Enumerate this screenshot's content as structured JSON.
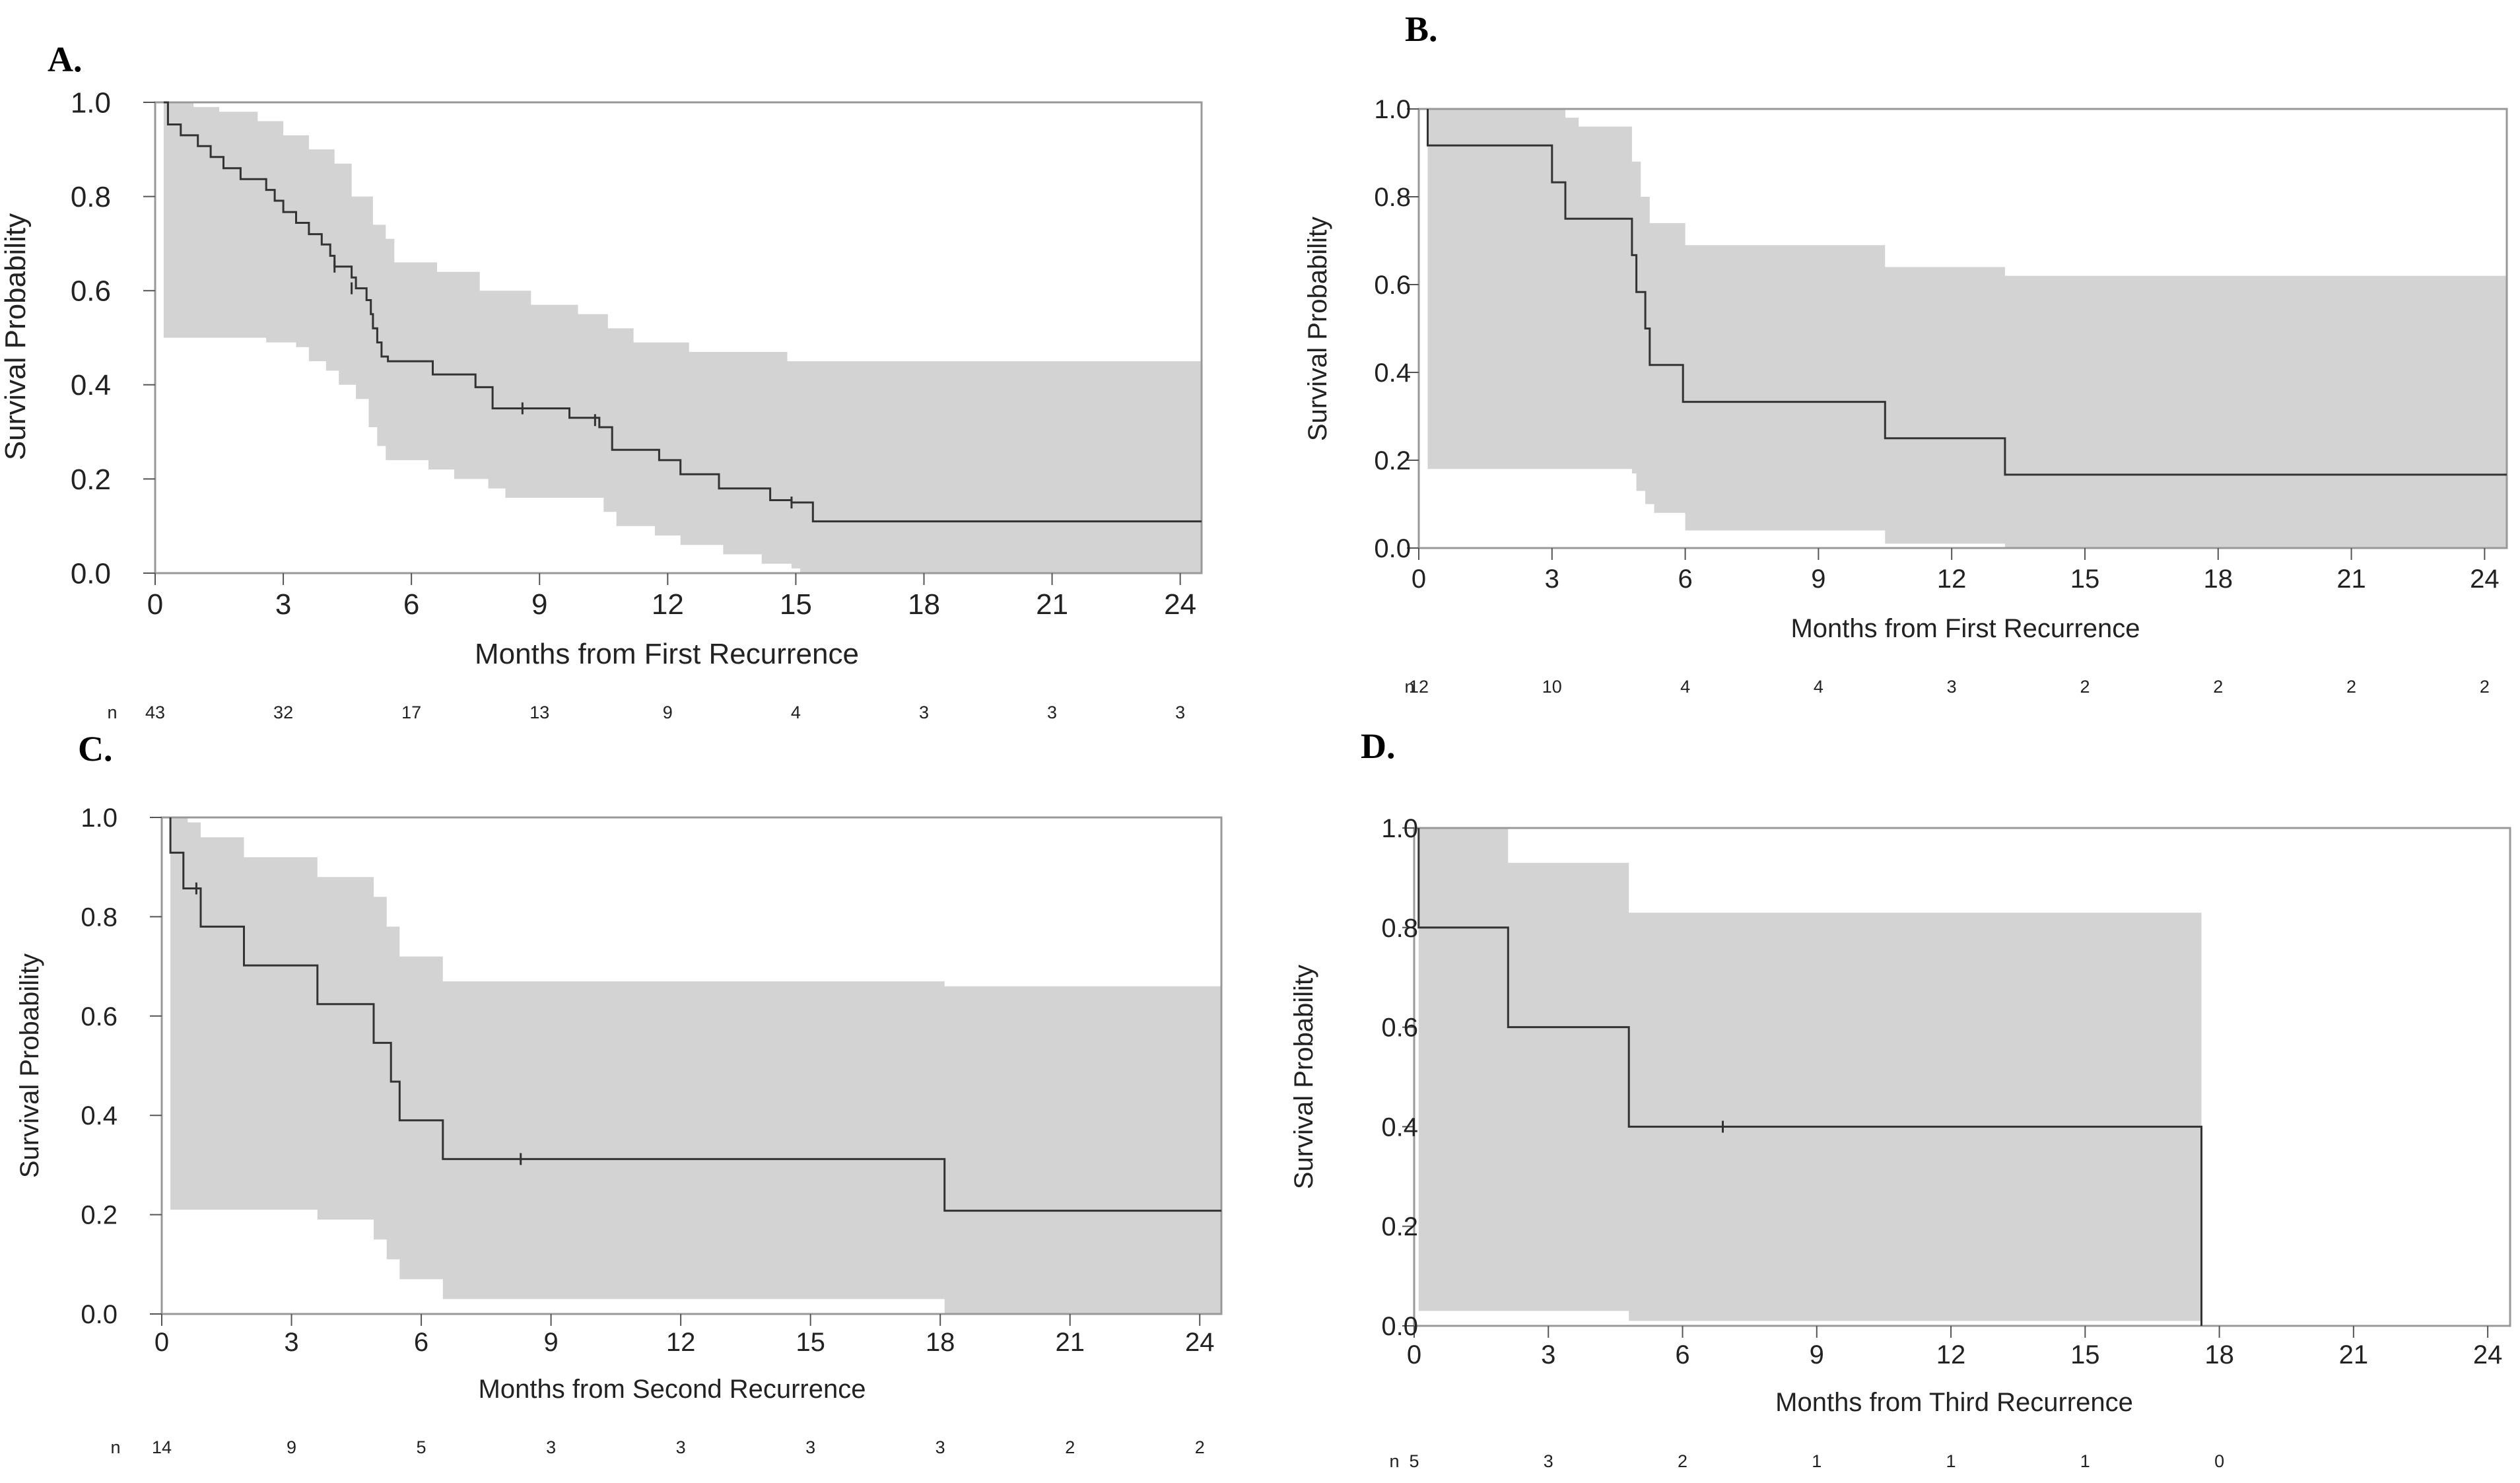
{
  "chart_data": [
    {
      "panel": "A.",
      "type": "line",
      "subtype": "kaplan-meier",
      "xlabel": "Months from First Recurrence",
      "ylabel": "Survival Probability",
      "xlim": [
        0,
        24.5
      ],
      "ylim": [
        0,
        1
      ],
      "xticks": [
        "0",
        "3",
        "6",
        "9",
        "12",
        "15",
        "18",
        "21",
        "24"
      ],
      "yticks": [
        "0.0",
        "0.2",
        "0.4",
        "0.6",
        "0.8",
        "1.0"
      ],
      "ci_color": "#d3d3d3",
      "line_color": "#333333",
      "risk_label": "n",
      "risk_table": [
        "43",
        "32",
        "17",
        "13",
        "9",
        "4",
        "3",
        "3",
        "3"
      ],
      "survival": [
        [
          0.2,
          1.0
        ],
        [
          0.3,
          0.953
        ],
        [
          0.6,
          0.93
        ],
        [
          1.0,
          0.907
        ],
        [
          1.3,
          0.884
        ],
        [
          1.6,
          0.86
        ],
        [
          2.0,
          0.837
        ],
        [
          2.6,
          0.814
        ],
        [
          2.8,
          0.791
        ],
        [
          3.0,
          0.767
        ],
        [
          3.3,
          0.744
        ],
        [
          3.6,
          0.72
        ],
        [
          3.9,
          0.698
        ],
        [
          4.1,
          0.674
        ],
        [
          4.2,
          0.651
        ],
        [
          4.6,
          0.628
        ],
        [
          4.7,
          0.605
        ],
        [
          4.95,
          0.58
        ],
        [
          5.05,
          0.55
        ],
        [
          5.1,
          0.52
        ],
        [
          5.2,
          0.49
        ],
        [
          5.3,
          0.46
        ],
        [
          5.45,
          0.45
        ],
        [
          6.5,
          0.422
        ],
        [
          7.5,
          0.395
        ],
        [
          7.9,
          0.35
        ],
        [
          9.7,
          0.33
        ],
        [
          10.4,
          0.31
        ],
        [
          10.7,
          0.262
        ],
        [
          11.8,
          0.24
        ],
        [
          12.3,
          0.21
        ],
        [
          13.2,
          0.18
        ],
        [
          14.4,
          0.155
        ],
        [
          14.9,
          0.15
        ],
        [
          15.4,
          0.11
        ],
        [
          24.5,
          0.11
        ]
      ],
      "ci_upper": [
        [
          0.2,
          1.0
        ],
        [
          0.9,
          0.99
        ],
        [
          1.5,
          0.98
        ],
        [
          2.4,
          0.96
        ],
        [
          3.0,
          0.93
        ],
        [
          3.6,
          0.9
        ],
        [
          4.2,
          0.87
        ],
        [
          4.6,
          0.8
        ],
        [
          5.1,
          0.74
        ],
        [
          5.4,
          0.71
        ],
        [
          5.6,
          0.66
        ],
        [
          6.6,
          0.64
        ],
        [
          7.6,
          0.6
        ],
        [
          8.8,
          0.57
        ],
        [
          9.9,
          0.55
        ],
        [
          10.6,
          0.52
        ],
        [
          11.2,
          0.49
        ],
        [
          12.5,
          0.47
        ],
        [
          14.8,
          0.45
        ],
        [
          24.5,
          0.45
        ]
      ],
      "ci_lower": [
        [
          0.2,
          0.5
        ],
        [
          2.6,
          0.49
        ],
        [
          3.3,
          0.48
        ],
        [
          3.6,
          0.45
        ],
        [
          4.0,
          0.43
        ],
        [
          4.3,
          0.4
        ],
        [
          4.7,
          0.37
        ],
        [
          5.0,
          0.31
        ],
        [
          5.2,
          0.27
        ],
        [
          5.4,
          0.24
        ],
        [
          6.4,
          0.22
        ],
        [
          7.0,
          0.2
        ],
        [
          7.8,
          0.18
        ],
        [
          8.2,
          0.16
        ],
        [
          10.5,
          0.13
        ],
        [
          10.8,
          0.1
        ],
        [
          11.7,
          0.08
        ],
        [
          12.3,
          0.06
        ],
        [
          13.3,
          0.04
        ],
        [
          14.2,
          0.02
        ],
        [
          14.9,
          0.01
        ],
        [
          15.1,
          0.0
        ],
        [
          24.5,
          0.0
        ]
      ],
      "censor": [
        [
          4.2,
          0.651
        ],
        [
          4.6,
          0.605
        ],
        [
          8.6,
          0.35
        ],
        [
          10.3,
          0.325
        ],
        [
          14.9,
          0.15
        ]
      ]
    },
    {
      "panel": "B.",
      "type": "line",
      "subtype": "kaplan-meier",
      "xlabel": "Months from First Recurrence",
      "ylabel": "Survival Probability",
      "xlim": [
        0,
        24.5
      ],
      "ylim": [
        0,
        1
      ],
      "xticks": [
        "0",
        "3",
        "6",
        "9",
        "12",
        "15",
        "18",
        "21",
        "24"
      ],
      "yticks": [
        "0.0",
        "0.2",
        "0.4",
        "0.6",
        "0.8",
        "1.0"
      ],
      "ci_color": "#d3d3d3",
      "line_color": "#333333",
      "risk_label": "n",
      "risk_table": [
        "12",
        "10",
        "4",
        "4",
        "3",
        "2",
        "2",
        "2",
        "2"
      ],
      "survival": [
        [
          0.2,
          1.0
        ],
        [
          0.2,
          0.917
        ],
        [
          3.0,
          0.833
        ],
        [
          3.3,
          0.75
        ],
        [
          4.8,
          0.667
        ],
        [
          4.9,
          0.583
        ],
        [
          5.1,
          0.5
        ],
        [
          5.2,
          0.417
        ],
        [
          5.95,
          0.333
        ],
        [
          10.5,
          0.25
        ],
        [
          13.2,
          0.167
        ],
        [
          24.5,
          0.167
        ]
      ],
      "ci_upper": [
        [
          0.2,
          1.0
        ],
        [
          3.3,
          0.98
        ],
        [
          3.6,
          0.96
        ],
        [
          4.8,
          0.88
        ],
        [
          5.0,
          0.8
        ],
        [
          5.2,
          0.74
        ],
        [
          6.0,
          0.69
        ],
        [
          10.5,
          0.64
        ],
        [
          13.2,
          0.62
        ],
        [
          24.5,
          0.62
        ]
      ],
      "ci_lower": [
        [
          0.2,
          0.18
        ],
        [
          4.8,
          0.17
        ],
        [
          4.9,
          0.13
        ],
        [
          5.1,
          0.1
        ],
        [
          5.3,
          0.08
        ],
        [
          6.0,
          0.04
        ],
        [
          10.5,
          0.01
        ],
        [
          13.2,
          0.0
        ],
        [
          24.5,
          0.0
        ]
      ],
      "censor": []
    },
    {
      "panel": "C.",
      "type": "line",
      "subtype": "kaplan-meier",
      "xlabel": "Months from Second Recurrence",
      "ylabel": "Survival Probability",
      "xlim": [
        0,
        24.5
      ],
      "ylim": [
        0,
        1
      ],
      "xticks": [
        "0",
        "3",
        "6",
        "9",
        "12",
        "15",
        "18",
        "21",
        "24"
      ],
      "yticks": [
        "0.0",
        "0.2",
        "0.4",
        "0.6",
        "0.8",
        "1.0"
      ],
      "ci_color": "#d3d3d3",
      "line_color": "#333333",
      "risk_label": "n",
      "risk_table": [
        "14",
        "9",
        "5",
        "3",
        "3",
        "3",
        "3",
        "2",
        "2"
      ],
      "survival": [
        [
          0.2,
          1.0
        ],
        [
          0.2,
          0.929
        ],
        [
          0.5,
          0.857
        ],
        [
          0.9,
          0.78
        ],
        [
          1.9,
          0.702
        ],
        [
          3.6,
          0.624
        ],
        [
          4.9,
          0.546
        ],
        [
          5.3,
          0.468
        ],
        [
          5.5,
          0.39
        ],
        [
          6.5,
          0.312
        ],
        [
          18.1,
          0.208
        ],
        [
          24.5,
          0.208
        ]
      ],
      "ci_upper": [
        [
          0.2,
          1.0
        ],
        [
          0.6,
          0.99
        ],
        [
          0.9,
          0.96
        ],
        [
          1.9,
          0.92
        ],
        [
          3.6,
          0.88
        ],
        [
          4.9,
          0.84
        ],
        [
          5.2,
          0.78
        ],
        [
          5.5,
          0.72
        ],
        [
          6.5,
          0.67
        ],
        [
          18.1,
          0.66
        ],
        [
          24.5,
          0.66
        ]
      ],
      "ci_lower": [
        [
          0.2,
          0.21
        ],
        [
          3.6,
          0.19
        ],
        [
          4.9,
          0.15
        ],
        [
          5.2,
          0.11
        ],
        [
          5.5,
          0.07
        ],
        [
          6.5,
          0.03
        ],
        [
          18.1,
          0.0
        ],
        [
          24.5,
          0.0
        ]
      ],
      "censor": [
        [
          0.8,
          0.857
        ],
        [
          8.3,
          0.312
        ]
      ]
    },
    {
      "panel": "D.",
      "type": "line",
      "subtype": "kaplan-meier",
      "xlabel": "Months from Third Recurrence",
      "ylabel": "Survival Probability",
      "xlim": [
        0,
        24.5
      ],
      "ylim": [
        0,
        1
      ],
      "xticks": [
        "0",
        "3",
        "6",
        "9",
        "12",
        "15",
        "18",
        "21",
        "24"
      ],
      "yticks": [
        "0.0",
        "0.2",
        "0.4",
        "0.6",
        "0.8",
        "1.0"
      ],
      "ci_color": "#d3d3d3",
      "line_color": "#333333",
      "risk_label": "n",
      "risk_table": [
        "5",
        "3",
        "2",
        "1",
        "1",
        "1",
        "0"
      ],
      "survival": [
        [
          0.1,
          1.0
        ],
        [
          0.1,
          0.8
        ],
        [
          2.1,
          0.6
        ],
        [
          4.8,
          0.4
        ],
        [
          17.6,
          0.4
        ],
        [
          17.6,
          0.0
        ]
      ],
      "ci_upper": [
        [
          0.1,
          1.0
        ],
        [
          2.1,
          0.93
        ],
        [
          4.8,
          0.83
        ],
        [
          17.6,
          0.83
        ],
        [
          17.6,
          0.0
        ]
      ],
      "ci_lower": [
        [
          0.1,
          0.03
        ],
        [
          4.8,
          0.01
        ],
        [
          17.6,
          0.01
        ],
        [
          17.6,
          0.0
        ]
      ],
      "censor": [
        [
          6.9,
          0.4
        ]
      ]
    }
  ]
}
